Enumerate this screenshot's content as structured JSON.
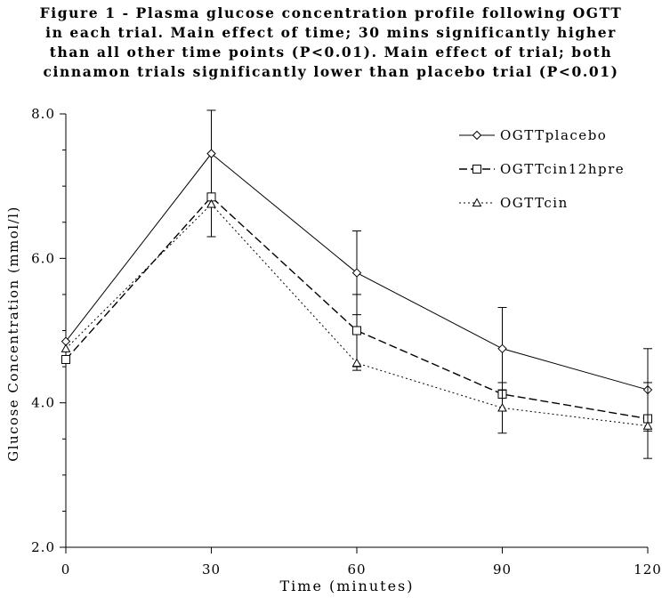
{
  "chart_data": {
    "type": "line",
    "title_lines": [
      "Figure 1 - Plasma glucose concentration profile following OGTT",
      "in each trial. Main effect of time; 30 mins significantly higher",
      "than all other time points (P<0.01). Main effect of trial; both",
      "cinnamon trials significantly lower than placebo trial (P<0.01)"
    ],
    "xlabel": "Time (minutes)",
    "ylabel": "Glucose Concentration (mmol/l)",
    "x": [
      0,
      30,
      60,
      90,
      120
    ],
    "x_tick_labels": [
      "0",
      "30",
      "60",
      "90",
      "120"
    ],
    "xlim": [
      0,
      120
    ],
    "ylim": [
      2.0,
      8.0
    ],
    "y_ticks": [
      2.0,
      4.0,
      6.0,
      8.0
    ],
    "y_tick_labels": [
      "2.0",
      "4.0",
      "6.0",
      "8.0"
    ],
    "grid": false,
    "legend_position": "top-right",
    "series": [
      {
        "name": "OGTTplacebo",
        "marker": "diamond",
        "dash": "solid",
        "values": [
          4.85,
          7.45,
          5.8,
          4.75,
          4.18
        ],
        "err_upper": [
          4.85,
          8.05,
          6.38,
          5.32,
          4.75
        ],
        "err_lower": [
          4.85,
          6.85,
          5.22,
          4.18,
          3.61
        ]
      },
      {
        "name": "OGTTcin12hpre",
        "marker": "square",
        "dash": "dashed",
        "values": [
          4.6,
          6.85,
          5.0,
          4.12,
          3.78
        ],
        "err_upper": [
          4.6,
          6.85,
          5.5,
          4.12,
          3.78
        ],
        "err_lower": [
          4.6,
          6.85,
          4.5,
          4.12,
          3.78
        ]
      },
      {
        "name": "OGTTcin",
        "marker": "triangle",
        "dash": "dotted",
        "values": [
          4.75,
          6.75,
          4.55,
          3.93,
          3.68
        ],
        "err_upper": [
          4.75,
          6.75,
          4.55,
          4.28,
          4.28
        ],
        "err_lower": [
          4.75,
          6.3,
          4.45,
          3.58,
          3.23
        ]
      }
    ]
  }
}
